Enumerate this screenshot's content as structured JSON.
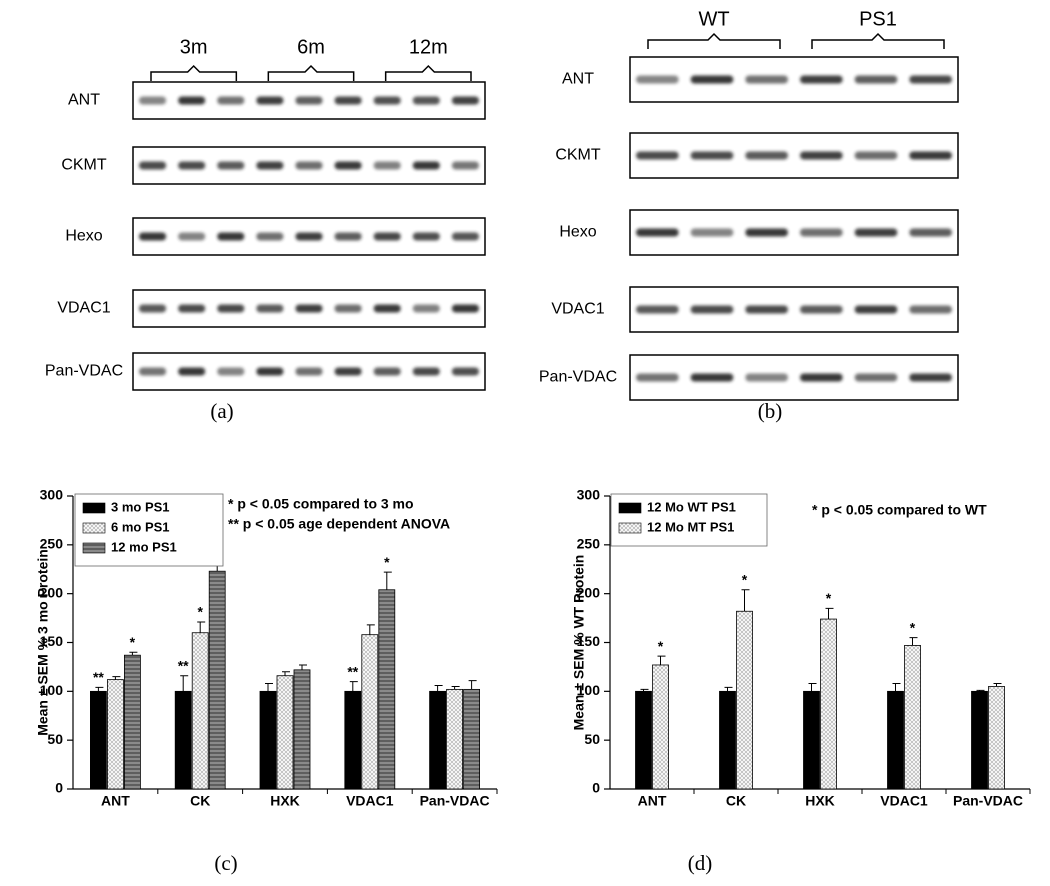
{
  "blots": [
    {
      "groups": [
        "3m",
        "6m",
        "12m"
      ],
      "rows": [
        "ANT",
        "CKMT",
        "Hexo",
        "VDAC1",
        "Pan-VDAC"
      ],
      "label": "(a)"
    },
    {
      "groups": [
        "WT",
        "PS1"
      ],
      "rows": [
        "ANT",
        "CKMT",
        "Hexo",
        "VDAC1",
        "Pan-VDAC"
      ],
      "label": "(b)"
    }
  ],
  "chart_data": [
    {
      "type": "bar",
      "label": "(c)",
      "ylabel": "Mean ± SEM % 3 mo Protein",
      "categories": [
        "ANT",
        "CK",
        "HXK",
        "VDAC1",
        "Pan-VDAC"
      ],
      "series": [
        {
          "name": "3 mo PS1",
          "color": "#000000",
          "hatch": "none",
          "values": [
            100,
            100,
            100,
            100,
            100
          ],
          "errors": [
            4,
            16,
            8,
            10,
            6
          ],
          "significance": [
            "**",
            "**",
            null,
            "**",
            null
          ]
        },
        {
          "name": "6 mo PS1",
          "color": "#b8b8b8",
          "hatch": "cross",
          "values": [
            112,
            160,
            116,
            158,
            102
          ],
          "errors": [
            3,
            11,
            4,
            10,
            3
          ],
          "significance": [
            null,
            "*",
            null,
            null,
            null
          ]
        },
        {
          "name": "12 mo PS1",
          "color": "#8a8a8a",
          "hatch": "horizontal",
          "values": [
            137,
            223,
            122,
            204,
            102
          ],
          "errors": [
            3,
            9,
            5,
            18,
            9
          ],
          "significance": [
            "*",
            "*",
            null,
            "*",
            null
          ]
        }
      ],
      "annotations": [
        "* p < 0.05 compared to 3 mo",
        "** p < 0.05 age dependent ANOVA"
      ],
      "ylim": [
        0,
        300
      ],
      "yticks": [
        0,
        50,
        100,
        150,
        200,
        250,
        300
      ],
      "legend": "upper left"
    },
    {
      "type": "bar",
      "label": "(d)",
      "ylabel": "Mean ± SEM % WT Protein",
      "categories": [
        "ANT",
        "CK",
        "HXK",
        "VDAC1",
        "Pan-VDAC"
      ],
      "series": [
        {
          "name": "12 Mo  WT PS1",
          "color": "#000000",
          "hatch": "none",
          "values": [
            100,
            100,
            100,
            100,
            100
          ],
          "errors": [
            2,
            4,
            8,
            8,
            1
          ],
          "significance": [
            null,
            null,
            null,
            null,
            null
          ]
        },
        {
          "name": "12 Mo MT PS1",
          "color": "#b8b8b8",
          "hatch": "cross",
          "values": [
            127,
            182,
            174,
            147,
            105
          ],
          "errors": [
            9,
            22,
            11,
            8,
            3
          ],
          "significance": [
            "*",
            "*",
            "*",
            "*",
            null
          ]
        }
      ],
      "annotations": [
        "* p < 0.05 compared to WT"
      ],
      "ylim": [
        0,
        300
      ],
      "yticks": [
        0,
        50,
        100,
        150,
        200,
        250,
        300
      ],
      "legend": "upper left"
    }
  ]
}
